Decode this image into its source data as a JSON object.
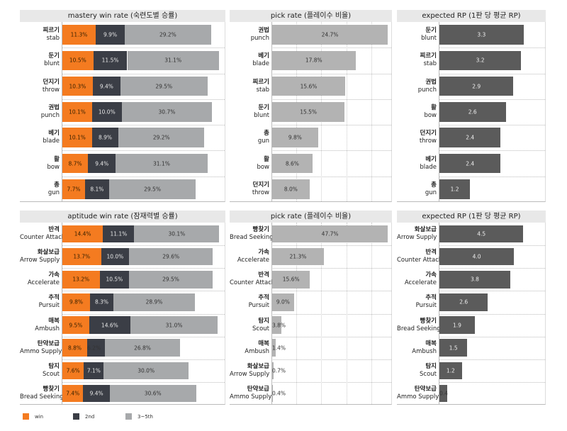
{
  "colors": {
    "win": "#f47b20",
    "second": "#3b3e46",
    "third_fifth": "#a7a9ab",
    "pick": "#b3b3b3",
    "rp": "#5b5b5b"
  },
  "legend": [
    {
      "label": "win",
      "color": "#f47b20"
    },
    {
      "label": "2nd",
      "color": "#3b3e46"
    },
    {
      "label": "3~5th",
      "color": "#a7a9ab"
    }
  ],
  "chart_data": [
    {
      "type": "bar",
      "stacked": true,
      "title": "mastery win rate (숙련도별 승률)",
      "categories_ko": [
        "찌르기",
        "둔기",
        "던지기",
        "권법",
        "베기",
        "활",
        "총"
      ],
      "categories": [
        "stab",
        "blunt",
        "throw",
        "punch",
        "blade",
        "bow",
        "gun"
      ],
      "series": [
        {
          "name": "win",
          "values": [
            11.3,
            10.5,
            10.3,
            10.1,
            10.1,
            8.7,
            7.7
          ],
          "labels": [
            "11.3%",
            "10.5%",
            "10.3%",
            "10.1%",
            "10.1%",
            "8.7%",
            "7.7%"
          ]
        },
        {
          "name": "2nd",
          "values": [
            9.9,
            11.5,
            9.4,
            10.0,
            8.9,
            9.4,
            8.1
          ],
          "labels": [
            "9.9%",
            "11.5%",
            "9.4%",
            "10.0%",
            "8.9%",
            "9.4%",
            "8.1%"
          ]
        },
        {
          "name": "3~5th",
          "values": [
            29.2,
            31.1,
            29.5,
            30.7,
            29.2,
            31.1,
            29.5
          ],
          "labels": [
            "29.2%",
            "31.1%",
            "29.5%",
            "30.7%",
            "29.2%",
            "31.1%",
            "29.5%"
          ]
        }
      ],
      "xlim": [
        0,
        55.3
      ]
    },
    {
      "type": "bar",
      "title": "pick rate (플레이수 비율)",
      "categories_ko": [
        "권법",
        "베기",
        "찌르기",
        "둔기",
        "총",
        "활",
        "던지기"
      ],
      "categories": [
        "punch",
        "blade",
        "stab",
        "blunt",
        "gun",
        "bow",
        "throw"
      ],
      "series": [
        {
          "name": "pick rate",
          "values": [
            24.7,
            17.8,
            15.6,
            15.5,
            9.8,
            8.6,
            8.0
          ],
          "labels": [
            "24.7%",
            "17.8%",
            "15.6%",
            "15.5%",
            "9.8%",
            "8.6%",
            "8.0%"
          ]
        }
      ],
      "xlim": [
        0,
        25.6
      ],
      "grid": true
    },
    {
      "type": "bar",
      "title": "expected RP (1판 당 평균 RP)",
      "categories_ko": [
        "둔기",
        "찌르기",
        "권법",
        "활",
        "던지기",
        "베기",
        "총"
      ],
      "categories": [
        "blunt",
        "stab",
        "punch",
        "bow",
        "throw",
        "blade",
        "gun"
      ],
      "series": [
        {
          "name": "expected RP",
          "values": [
            3.3,
            3.2,
            2.9,
            2.6,
            2.4,
            2.4,
            1.2
          ],
          "labels": [
            "3.3",
            "3.2",
            "2.9",
            "2.6",
            "2.4",
            "2.4",
            "1.2"
          ]
        }
      ],
      "xlim": [
        0,
        4.17
      ]
    },
    {
      "type": "bar",
      "stacked": true,
      "title": "aptitude win rate (잠재력별 승률)",
      "categories_ko": [
        "반격",
        "화살보급",
        "가속",
        "추적",
        "매복",
        "탄약보급",
        "탐지",
        "빵찾기"
      ],
      "categories": [
        "Counter Attack",
        "Arrow Supply",
        "Accelerate",
        "Pursuit",
        "Ambush",
        "Ammo Supply",
        "Scout",
        "Bread Seeking"
      ],
      "series": [
        {
          "name": "win",
          "values": [
            14.4,
            13.7,
            13.2,
            9.8,
            9.5,
            8.8,
            7.6,
            7.4
          ],
          "labels": [
            "14.4%",
            "13.7%",
            "13.2%",
            "9.8%",
            "9.5%",
            "8.8%",
            "7.6%",
            "7.4%"
          ]
        },
        {
          "name": "2nd",
          "values": [
            11.1,
            10.0,
            10.5,
            8.3,
            14.6,
            6.2,
            7.1,
            9.4
          ],
          "labels": [
            "11.1%",
            "10.0%",
            "10.5%",
            "8.3%",
            "14.6%",
            "6.2%",
            "7.1%",
            "9.4%"
          ]
        },
        {
          "name": "3~5th",
          "values": [
            30.1,
            29.6,
            29.5,
            28.9,
            31.0,
            26.8,
            30.0,
            30.6
          ],
          "labels": [
            "30.1%",
            "29.6%",
            "29.5%",
            "28.9%",
            "31.0%",
            "26.8%",
            "30.0%",
            "30.6%"
          ]
        }
      ],
      "xlim": [
        0,
        57.8
      ]
    },
    {
      "type": "bar",
      "title": "pick rate (플레이수 비율)",
      "categories_ko": [
        "빵찾기",
        "가속",
        "반격",
        "추적",
        "탐지",
        "매복",
        "화살보급",
        "탄약보급"
      ],
      "categories": [
        "Bread Seeking",
        "Accelerate",
        "Counter Attack",
        "Pursuit",
        "Scout",
        "Ambush",
        "Arrow Supply",
        "Ammo Supply"
      ],
      "series": [
        {
          "name": "pick rate",
          "values": [
            47.7,
            21.3,
            15.6,
            9.0,
            3.8,
            1.4,
            0.7,
            0.4
          ],
          "labels": [
            "47.7%",
            "21.3%",
            "15.6%",
            "9.0%",
            "3.8%",
            "1.4%",
            "0.7%",
            "0.4%"
          ]
        }
      ],
      "xlim": [
        0,
        49.4
      ],
      "grid": true
    },
    {
      "type": "bar",
      "title": "expected RP (1판 당 평균 RP)",
      "categories_ko": [
        "화살보급",
        "반격",
        "가속",
        "추적",
        "빵찾기",
        "매복",
        "탐지",
        "탄약보급"
      ],
      "categories": [
        "Arrow Supply",
        "Counter Attack",
        "Accelerate",
        "Pursuit",
        "Bread Seeking",
        "Ambush",
        "Scout",
        "Ammo Supply"
      ],
      "series": [
        {
          "name": "expected RP",
          "values": [
            4.5,
            4.0,
            3.8,
            2.6,
            1.9,
            1.5,
            1.2,
            0.4
          ],
          "labels": [
            "4.5",
            "4.0",
            "3.8",
            "2.6",
            "1.9",
            "1.5",
            "1.2",
            "0.4"
          ]
        }
      ],
      "xlim": [
        0,
        5.7
      ]
    }
  ]
}
